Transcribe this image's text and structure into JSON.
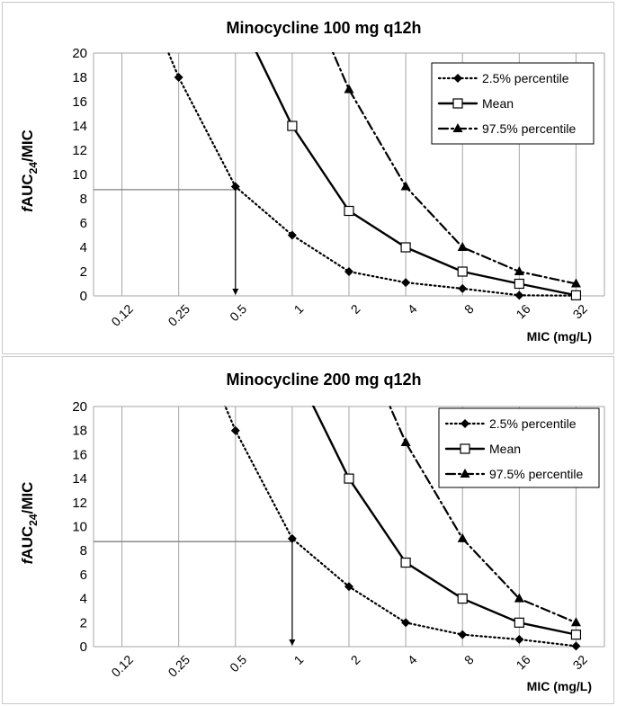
{
  "chart_data": [
    {
      "type": "line",
      "title": "Minocycline 100 mg q12h",
      "ylabel": "fAUC24/MIC",
      "ylabel_parts": {
        "italic": "f",
        "base": "AUC",
        "sub": "24",
        "rest": "/MIC"
      },
      "xlabel": "MIC (mg/L)",
      "x_scale": "log2",
      "x_ticks": [
        "0.12",
        "0.25",
        "0.5",
        "1",
        "2",
        "4",
        "8",
        "16",
        "32"
      ],
      "ylim": [
        0,
        20
      ],
      "y_ticks": [
        0,
        2,
        4,
        6,
        8,
        10,
        12,
        14,
        16,
        18,
        20
      ],
      "grid": "vertical",
      "legend_position": "top-right",
      "series": [
        {
          "name": "2.5% percentile",
          "style": "dotted",
          "marker": "diamond",
          "color": "#000000",
          "x": [
            0.25,
            0.5,
            1,
            2,
            4,
            8,
            16,
            32
          ],
          "y": [
            18,
            9,
            5,
            2,
            1.1,
            0.6,
            0.05,
            0.02
          ]
        },
        {
          "name": "Mean",
          "style": "solid",
          "marker": "open-square",
          "color": "#000000",
          "x": [
            1,
            2,
            4,
            8,
            16,
            32
          ],
          "y": [
            14,
            7,
            4,
            2,
            1,
            0.05
          ]
        },
        {
          "name": "97.5% percentile",
          "style": "dashdot",
          "marker": "triangle",
          "color": "#000000",
          "x": [
            2,
            4,
            8,
            16,
            32
          ],
          "y": [
            17,
            9,
            4,
            2,
            1
          ]
        }
      ],
      "target_line": {
        "y": 8.75,
        "x": 0.5
      }
    },
    {
      "type": "line",
      "title": "Minocycline 200 mg q12h",
      "ylabel": "fAUC24/MIC",
      "ylabel_parts": {
        "italic": "f",
        "base": "AUC",
        "sub": "24",
        "rest": "/MIC"
      },
      "xlabel": "MIC (mg/L)",
      "x_scale": "log2",
      "x_ticks": [
        "0.12",
        "0.25",
        "0.5",
        "1",
        "2",
        "4",
        "8",
        "16",
        "32"
      ],
      "ylim": [
        0,
        20
      ],
      "y_ticks": [
        0,
        2,
        4,
        6,
        8,
        10,
        12,
        14,
        16,
        18,
        20
      ],
      "grid": "vertical",
      "legend_position": "top-right",
      "series": [
        {
          "name": "2.5% percentile",
          "style": "dotted",
          "marker": "diamond",
          "color": "#000000",
          "x": [
            0.5,
            1,
            2,
            4,
            8,
            16,
            32
          ],
          "y": [
            18,
            9,
            5,
            2,
            1,
            0.6,
            0.05
          ]
        },
        {
          "name": "Mean",
          "style": "solid",
          "marker": "open-square",
          "color": "#000000",
          "x": [
            2,
            4,
            8,
            16,
            32
          ],
          "y": [
            14,
            7,
            4,
            2,
            1
          ]
        },
        {
          "name": "97.5% percentile",
          "style": "dashdot",
          "marker": "triangle",
          "color": "#000000",
          "x": [
            4,
            8,
            16,
            32
          ],
          "y": [
            17,
            9,
            4,
            2
          ]
        }
      ],
      "target_line": {
        "y": 8.75,
        "x": 1
      }
    }
  ]
}
